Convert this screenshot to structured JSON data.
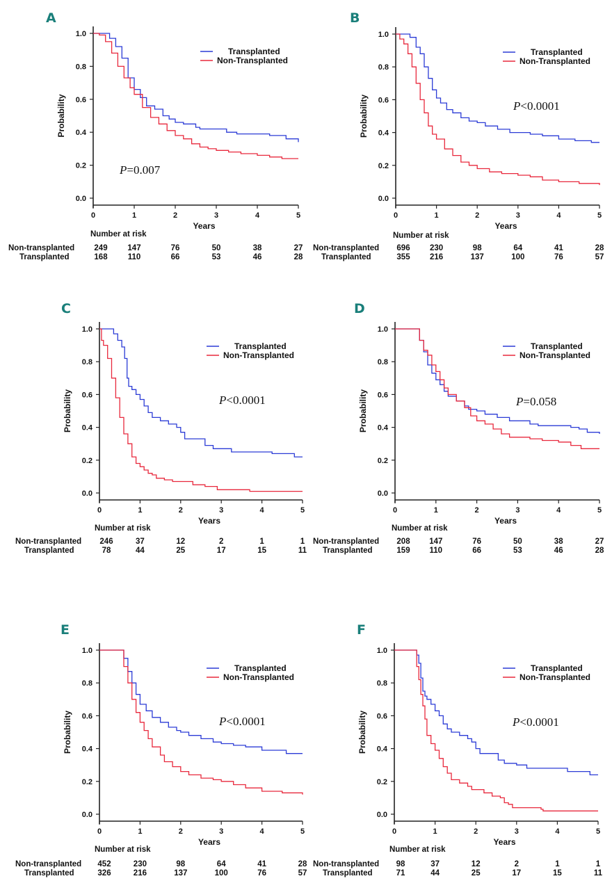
{
  "figure": {
    "colors": {
      "transplanted": "#2b3bd6",
      "non_transplanted": "#e8283c",
      "panel_label": "#1a7f7a",
      "axis": "#222222"
    },
    "common": {
      "ylabel": "Probability",
      "xlabel": "Years",
      "risk_title": "Number at risk",
      "risk_row_labels": [
        "Non-transplanted",
        "Transplanted"
      ],
      "legend": [
        "Transplanted",
        "Non-Transplanted"
      ]
    }
  },
  "chart_data": [
    {
      "panel": "A",
      "type": "line",
      "xlabel": "Years",
      "ylabel": "Probability",
      "xlim": [
        0,
        5
      ],
      "ylim": [
        0,
        1
      ],
      "x_ticks": [
        "0",
        "1",
        "2",
        "3",
        "4",
        "5"
      ],
      "y_ticks": [
        "0.0",
        "0.2",
        "0.4",
        "0.6",
        "0.8",
        "1.0"
      ],
      "legend": [
        "Transplanted",
        "Non-Transplanted"
      ],
      "legend_position": "top-right",
      "p_prefix": "P",
      "p_rest": "=0.007",
      "p_position": "bottom-left",
      "series": [
        {
          "name": "Transplanted",
          "x": [
            0,
            0.25,
            0.4,
            0.55,
            0.7,
            0.85,
            1.0,
            1.15,
            1.3,
            1.5,
            1.7,
            1.85,
            2.0,
            2.2,
            2.5,
            2.6,
            3.0,
            3.25,
            3.5,
            4.0,
            4.3,
            4.5,
            4.7,
            5.0
          ],
          "y": [
            1.0,
            1.0,
            0.97,
            0.92,
            0.85,
            0.73,
            0.66,
            0.61,
            0.56,
            0.54,
            0.5,
            0.48,
            0.46,
            0.45,
            0.43,
            0.42,
            0.42,
            0.4,
            0.39,
            0.39,
            0.38,
            0.38,
            0.36,
            0.34
          ]
        },
        {
          "name": "Non-Transplanted",
          "x": [
            0,
            0.15,
            0.3,
            0.45,
            0.6,
            0.75,
            0.9,
            1.0,
            1.2,
            1.4,
            1.6,
            1.8,
            2.0,
            2.2,
            2.4,
            2.6,
            2.8,
            3.0,
            3.3,
            3.6,
            4.0,
            4.3,
            4.6,
            5.0
          ],
          "y": [
            1.0,
            0.99,
            0.95,
            0.88,
            0.8,
            0.73,
            0.67,
            0.63,
            0.55,
            0.49,
            0.45,
            0.41,
            0.38,
            0.36,
            0.33,
            0.31,
            0.3,
            0.29,
            0.28,
            0.27,
            0.26,
            0.25,
            0.24,
            0.24
          ]
        }
      ],
      "risk_table": {
        "x": [
          0,
          1,
          2,
          3,
          4,
          5
        ],
        "non_transplanted": [
          "249",
          "147",
          "76",
          "50",
          "38",
          "27"
        ],
        "transplanted": [
          "168",
          "110",
          "66",
          "53",
          "46",
          "28"
        ]
      }
    },
    {
      "panel": "B",
      "type": "line",
      "xlabel": "Years",
      "ylabel": "Probability",
      "xlim": [
        0,
        5
      ],
      "ylim": [
        0,
        1
      ],
      "x_ticks": [
        "0",
        "1",
        "2",
        "3",
        "4",
        "5"
      ],
      "y_ticks": [
        "0.0",
        "0.2",
        "0.4",
        "0.6",
        "0.8",
        "1.0"
      ],
      "legend": [
        "Transplanted",
        "Non-Transplanted"
      ],
      "legend_position": "top-right",
      "p_prefix": "P",
      "p_rest": "<0.0001",
      "p_position": "middle-right",
      "series": [
        {
          "name": "Transplanted",
          "x": [
            0,
            0.25,
            0.35,
            0.5,
            0.6,
            0.7,
            0.8,
            0.9,
            1.0,
            1.1,
            1.25,
            1.4,
            1.6,
            1.8,
            2.0,
            2.2,
            2.5,
            2.8,
            3.0,
            3.3,
            3.6,
            4.0,
            4.4,
            4.8,
            5.0
          ],
          "y": [
            1.0,
            1.0,
            0.98,
            0.92,
            0.88,
            0.8,
            0.73,
            0.66,
            0.61,
            0.58,
            0.54,
            0.52,
            0.49,
            0.47,
            0.46,
            0.44,
            0.42,
            0.4,
            0.4,
            0.39,
            0.38,
            0.36,
            0.35,
            0.34,
            0.34
          ]
        },
        {
          "name": "Non-Transplanted",
          "x": [
            0,
            0.1,
            0.2,
            0.3,
            0.4,
            0.5,
            0.6,
            0.7,
            0.8,
            0.9,
            1.0,
            1.2,
            1.4,
            1.6,
            1.8,
            2.0,
            2.3,
            2.6,
            3.0,
            3.3,
            3.6,
            4.0,
            4.5,
            5.0
          ],
          "y": [
            1.0,
            0.97,
            0.94,
            0.88,
            0.8,
            0.7,
            0.6,
            0.52,
            0.44,
            0.39,
            0.36,
            0.3,
            0.26,
            0.22,
            0.2,
            0.18,
            0.16,
            0.15,
            0.14,
            0.13,
            0.11,
            0.1,
            0.09,
            0.08
          ]
        }
      ],
      "risk_table": {
        "x": [
          0,
          1,
          2,
          3,
          4,
          5
        ],
        "non_transplanted": [
          "696",
          "230",
          "98",
          "64",
          "41",
          "28"
        ],
        "transplanted": [
          "355",
          "216",
          "137",
          "100",
          "76",
          "57"
        ]
      }
    },
    {
      "panel": "C",
      "type": "line",
      "xlabel": "Years",
      "ylabel": "Probability",
      "xlim": [
        0,
        5
      ],
      "ylim": [
        0,
        1
      ],
      "x_ticks": [
        "0",
        "1",
        "2",
        "3",
        "4",
        "5"
      ],
      "y_ticks": [
        "0.0",
        "0.2",
        "0.4",
        "0.6",
        "0.8",
        "1.0"
      ],
      "legend": [
        "Transplanted",
        "Non-Transplanted"
      ],
      "legend_position": "top-right",
      "p_prefix": "P",
      "p_rest": "<0.0001",
      "p_position": "middle-right",
      "series": [
        {
          "name": "Transplanted",
          "x": [
            0,
            0.25,
            0.35,
            0.45,
            0.55,
            0.62,
            0.68,
            0.72,
            0.8,
            0.9,
            1.0,
            1.1,
            1.2,
            1.3,
            1.5,
            1.7,
            1.9,
            2.0,
            2.1,
            2.5,
            2.6,
            2.8,
            3.0,
            3.25,
            3.5,
            4.0,
            4.25,
            4.5,
            4.8,
            5.0
          ],
          "y": [
            1.0,
            1.0,
            0.97,
            0.93,
            0.89,
            0.82,
            0.7,
            0.65,
            0.63,
            0.6,
            0.57,
            0.53,
            0.49,
            0.46,
            0.44,
            0.42,
            0.4,
            0.37,
            0.33,
            0.33,
            0.29,
            0.27,
            0.27,
            0.25,
            0.25,
            0.25,
            0.24,
            0.24,
            0.22,
            0.22
          ]
        },
        {
          "name": "Non-Transplanted",
          "x": [
            0,
            0.05,
            0.1,
            0.2,
            0.3,
            0.4,
            0.5,
            0.6,
            0.7,
            0.8,
            0.9,
            1.0,
            1.1,
            1.2,
            1.3,
            1.4,
            1.6,
            1.8,
            2.0,
            2.3,
            2.6,
            2.9,
            3.2,
            3.6,
            3.7,
            4.0,
            5.0
          ],
          "y": [
            1.0,
            0.93,
            0.9,
            0.82,
            0.7,
            0.58,
            0.46,
            0.36,
            0.3,
            0.22,
            0.18,
            0.16,
            0.14,
            0.12,
            0.11,
            0.09,
            0.08,
            0.07,
            0.07,
            0.05,
            0.04,
            0.02,
            0.02,
            0.02,
            0.01,
            0.01,
            0.01
          ]
        }
      ],
      "risk_table": {
        "x": [
          0,
          1,
          2,
          3,
          4,
          5
        ],
        "non_transplanted": [
          "246",
          "37",
          "12",
          "2",
          "1",
          "1"
        ],
        "transplanted": [
          "78",
          "44",
          "25",
          "17",
          "15",
          "11"
        ]
      }
    },
    {
      "panel": "D",
      "type": "line",
      "xlabel": "Years",
      "ylabel": "Probability",
      "xlim": [
        0,
        5
      ],
      "ylim": [
        0,
        1
      ],
      "x_ticks": [
        "0",
        "1",
        "2",
        "3",
        "4",
        "5"
      ],
      "y_ticks": [
        "0.0",
        "0.2",
        "0.4",
        "0.6",
        "0.8",
        "1.0"
      ],
      "legend": [
        "Transplanted",
        "Non-Transplanted"
      ],
      "legend_position": "top-right",
      "p_prefix": "P",
      "p_rest": "=0.058",
      "p_position": "middle-right",
      "series": [
        {
          "name": "Transplanted",
          "x": [
            0,
            0.5,
            0.6,
            0.7,
            0.8,
            0.9,
            1.0,
            1.1,
            1.2,
            1.3,
            1.5,
            1.7,
            1.8,
            2.0,
            2.2,
            2.5,
            2.8,
            3.0,
            3.3,
            3.5,
            4.0,
            4.3,
            4.5,
            4.7,
            5.0
          ],
          "y": [
            1.0,
            1.0,
            0.93,
            0.86,
            0.78,
            0.73,
            0.69,
            0.66,
            0.62,
            0.59,
            0.56,
            0.53,
            0.51,
            0.5,
            0.48,
            0.46,
            0.44,
            0.44,
            0.42,
            0.41,
            0.41,
            0.4,
            0.39,
            0.37,
            0.36
          ]
        },
        {
          "name": "Non-Transplanted",
          "x": [
            0,
            0.5,
            0.6,
            0.7,
            0.8,
            0.9,
            1.0,
            1.1,
            1.2,
            1.3,
            1.5,
            1.7,
            1.85,
            2.0,
            2.2,
            2.4,
            2.6,
            2.8,
            3.0,
            3.3,
            3.6,
            4.0,
            4.3,
            4.55,
            5.0
          ],
          "y": [
            1.0,
            1.0,
            0.93,
            0.87,
            0.84,
            0.78,
            0.74,
            0.69,
            0.64,
            0.6,
            0.56,
            0.52,
            0.47,
            0.44,
            0.42,
            0.39,
            0.36,
            0.34,
            0.34,
            0.33,
            0.32,
            0.31,
            0.29,
            0.27,
            0.27
          ]
        }
      ],
      "risk_table": {
        "x": [
          0,
          1,
          2,
          3,
          4,
          5
        ],
        "non_transplanted": [
          "208",
          "147",
          "76",
          "50",
          "38",
          "27"
        ],
        "transplanted": [
          "159",
          "110",
          "66",
          "53",
          "46",
          "28"
        ]
      }
    },
    {
      "panel": "E",
      "type": "line",
      "xlabel": "Years",
      "ylabel": "Probability",
      "xlim": [
        0,
        5
      ],
      "ylim": [
        0,
        1
      ],
      "x_ticks": [
        "0",
        "1",
        "2",
        "3",
        "4",
        "5"
      ],
      "y_ticks": [
        "0.0",
        "0.2",
        "0.4",
        "0.6",
        "0.8",
        "1.0"
      ],
      "legend": [
        "Transplanted",
        "Non-Transplanted"
      ],
      "legend_position": "top-right",
      "p_prefix": "P",
      "p_rest": "<0.0001",
      "p_position": "middle-right",
      "series": [
        {
          "name": "Transplanted",
          "x": [
            0,
            0.5,
            0.6,
            0.7,
            0.8,
            0.9,
            1.0,
            1.15,
            1.3,
            1.5,
            1.7,
            1.9,
            2.0,
            2.2,
            2.5,
            2.8,
            3.0,
            3.3,
            3.6,
            4.0,
            4.3,
            4.6,
            5.0
          ],
          "y": [
            1.0,
            1.0,
            0.95,
            0.87,
            0.8,
            0.73,
            0.67,
            0.63,
            0.59,
            0.56,
            0.53,
            0.51,
            0.5,
            0.48,
            0.46,
            0.44,
            0.43,
            0.42,
            0.41,
            0.39,
            0.39,
            0.37,
            0.37
          ]
        },
        {
          "name": "Non-Transplanted",
          "x": [
            0,
            0.5,
            0.6,
            0.7,
            0.8,
            0.9,
            1.0,
            1.1,
            1.2,
            1.3,
            1.5,
            1.6,
            1.8,
            2.0,
            2.2,
            2.5,
            2.8,
            3.0,
            3.3,
            3.6,
            4.0,
            4.5,
            5.0
          ],
          "y": [
            1.0,
            1.0,
            0.9,
            0.8,
            0.7,
            0.62,
            0.56,
            0.51,
            0.46,
            0.41,
            0.36,
            0.32,
            0.29,
            0.26,
            0.24,
            0.22,
            0.21,
            0.2,
            0.18,
            0.16,
            0.14,
            0.13,
            0.12
          ]
        }
      ],
      "risk_table": {
        "x": [
          0,
          1,
          2,
          3,
          4,
          5
        ],
        "non_transplanted": [
          "452",
          "230",
          "98",
          "64",
          "41",
          "28"
        ],
        "transplanted": [
          "326",
          "216",
          "137",
          "100",
          "76",
          "57"
        ]
      }
    },
    {
      "panel": "F",
      "type": "line",
      "xlabel": "Years",
      "ylabel": "Probability",
      "xlim": [
        0,
        5
      ],
      "ylim": [
        0,
        1
      ],
      "x_ticks": [
        "0",
        "1",
        "2",
        "3",
        "4",
        "5"
      ],
      "y_ticks": [
        "0.0",
        "0.2",
        "0.4",
        "0.6",
        "0.8",
        "1.0"
      ],
      "legend": [
        "Transplanted",
        "Non-Transplanted"
      ],
      "legend_position": "top-right",
      "p_prefix": "P",
      "p_rest": "<0.0001",
      "p_position": "middle-right",
      "series": [
        {
          "name": "Transplanted",
          "x": [
            0,
            0.5,
            0.55,
            0.6,
            0.65,
            0.7,
            0.75,
            0.8,
            0.9,
            1.0,
            1.1,
            1.2,
            1.3,
            1.4,
            1.6,
            1.8,
            1.9,
            2.0,
            2.1,
            2.5,
            2.55,
            2.7,
            3.0,
            3.25,
            3.5,
            4.0,
            4.25,
            4.5,
            4.8,
            5.0
          ],
          "y": [
            1.0,
            1.0,
            0.97,
            0.92,
            0.83,
            0.75,
            0.72,
            0.7,
            0.67,
            0.63,
            0.6,
            0.55,
            0.52,
            0.5,
            0.48,
            0.46,
            0.44,
            0.4,
            0.37,
            0.37,
            0.33,
            0.31,
            0.3,
            0.28,
            0.28,
            0.28,
            0.26,
            0.26,
            0.24,
            0.24
          ]
        },
        {
          "name": "Non-Transplanted",
          "x": [
            0,
            0.5,
            0.55,
            0.6,
            0.65,
            0.7,
            0.75,
            0.8,
            0.9,
            1.0,
            1.1,
            1.2,
            1.3,
            1.4,
            1.6,
            1.8,
            1.9,
            2.0,
            2.2,
            2.4,
            2.6,
            2.7,
            2.8,
            2.9,
            3.0,
            3.6,
            3.65,
            4.0,
            5.0
          ],
          "y": [
            1.0,
            1.0,
            0.9,
            0.82,
            0.73,
            0.66,
            0.58,
            0.48,
            0.43,
            0.39,
            0.34,
            0.29,
            0.25,
            0.21,
            0.19,
            0.17,
            0.15,
            0.15,
            0.13,
            0.11,
            0.1,
            0.07,
            0.06,
            0.04,
            0.04,
            0.03,
            0.02,
            0.02,
            0.02
          ]
        }
      ],
      "risk_table": {
        "x": [
          0,
          1,
          2,
          3,
          4,
          5
        ],
        "non_transplanted": [
          "98",
          "37",
          "12",
          "2",
          "1",
          "1"
        ],
        "transplanted": [
          "71",
          "44",
          "25",
          "17",
          "15",
          "11"
        ]
      }
    }
  ]
}
